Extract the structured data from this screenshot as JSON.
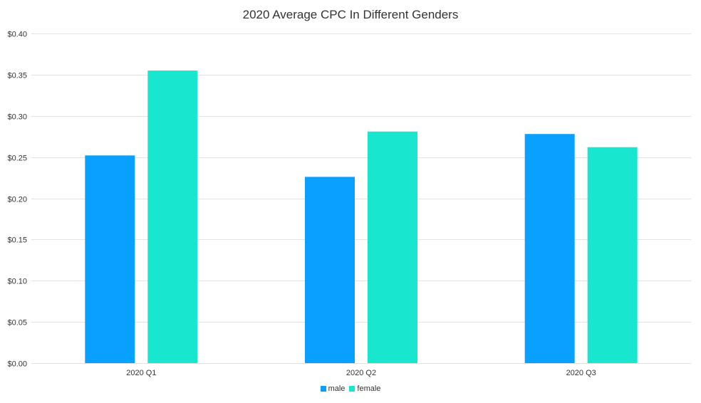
{
  "chart_data": {
    "type": "bar",
    "title": "2020 Average CPC In Different Genders",
    "xlabel": "",
    "ylabel": "",
    "categories": [
      "2020 Q1",
      "2020 Q2",
      "2020 Q3"
    ],
    "series": [
      {
        "name": "male",
        "values": [
          0.252,
          0.226,
          0.278
        ],
        "color": "#0aa0ff"
      },
      {
        "name": "female",
        "values": [
          0.355,
          0.281,
          0.262
        ],
        "color": "#18e6cf"
      }
    ],
    "ylim": [
      0,
      0.4
    ],
    "y_ticks": [
      0.0,
      0.05,
      0.1,
      0.15,
      0.2,
      0.25,
      0.3,
      0.35,
      0.4
    ],
    "y_tick_labels": [
      "$0.00",
      "$0.05",
      "$0.10",
      "$0.15",
      "$0.20",
      "$0.25",
      "$0.30",
      "$0.35",
      "$0.40"
    ],
    "grid": true,
    "legend_position": "bottom-center",
    "grid_color": "#e3e3e3"
  }
}
